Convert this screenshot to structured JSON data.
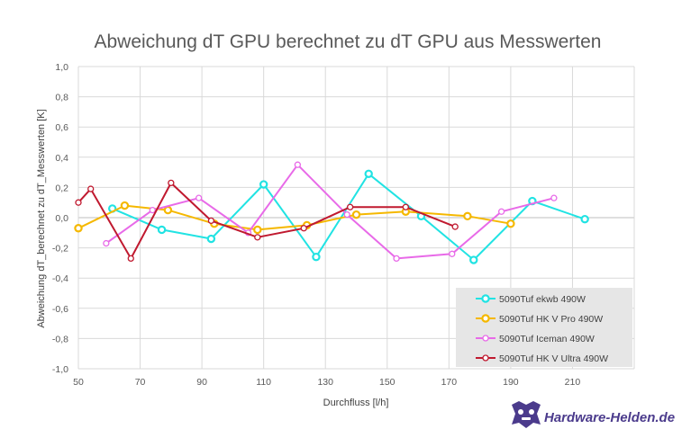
{
  "chart_data": {
    "type": "line",
    "title": "Abweichung dT GPU  berechnet zu dT GPU aus Messwerten",
    "xlabel": "Durchfluss [l/h]",
    "ylabel": "Abweichung  dT_berechnet  zu dT_Messwerten   [K]",
    "xlim": [
      50,
      230
    ],
    "ylim": [
      -1.0,
      1.0
    ],
    "xticks": [
      "50",
      "70",
      "90",
      "110",
      "130",
      "150",
      "170",
      "190",
      "210"
    ],
    "yticks": [
      "1,0",
      "0,8",
      "0,6",
      "0,4",
      "0,2",
      "0,0",
      "-0,2",
      "-0,4",
      "-0,6",
      "-0,8",
      "-1,0"
    ],
    "grid": true,
    "legend_position": "bottom-right",
    "series": [
      {
        "name": "5090Tuf ekwb 490W",
        "color": "#21e3e3",
        "marker": "thick-circle",
        "points": [
          [
            61,
            0.06
          ],
          [
            77,
            -0.08
          ],
          [
            93,
            -0.14
          ],
          [
            110,
            0.22
          ],
          [
            127,
            -0.26
          ],
          [
            144,
            0.29
          ],
          [
            161,
            0.01
          ],
          [
            178,
            -0.28
          ],
          [
            197,
            0.11
          ],
          [
            214,
            -0.01
          ]
        ]
      },
      {
        "name": "5090Tuf HK V Pro 490W",
        "color": "#f5b800",
        "marker": "thick-circle",
        "points": [
          [
            50,
            -0.07
          ],
          [
            65,
            0.08
          ],
          [
            79,
            0.05
          ],
          [
            94,
            -0.04
          ],
          [
            108,
            -0.08
          ],
          [
            124,
            -0.05
          ],
          [
            140,
            0.02
          ],
          [
            156,
            0.04
          ],
          [
            176,
            0.01
          ],
          [
            190,
            -0.04
          ]
        ]
      },
      {
        "name": "5090Tuf Iceman 490W",
        "color": "#e86ae8",
        "marker": "circle",
        "points": [
          [
            59,
            -0.17
          ],
          [
            74,
            0.05
          ],
          [
            89,
            0.13
          ],
          [
            105,
            -0.1
          ],
          [
            121,
            0.35
          ],
          [
            137,
            0.02
          ],
          [
            153,
            -0.27
          ],
          [
            171,
            -0.24
          ],
          [
            187,
            0.04
          ],
          [
            204,
            0.13
          ]
        ]
      },
      {
        "name": "5090Tuf HK V Ultra 490W",
        "color": "#c0192f",
        "marker": "circle",
        "points": [
          [
            50,
            0.1
          ],
          [
            54,
            0.19
          ],
          [
            67,
            -0.27
          ],
          [
            80,
            0.23
          ],
          [
            93,
            -0.02
          ],
          [
            108,
            -0.13
          ],
          [
            123,
            -0.07
          ],
          [
            138,
            0.07
          ],
          [
            156,
            0.07
          ],
          [
            172,
            -0.06
          ]
        ]
      }
    ]
  },
  "watermark": {
    "text": "Hardware-Helden.de",
    "icon": "hardware-helden-logo-icon"
  }
}
